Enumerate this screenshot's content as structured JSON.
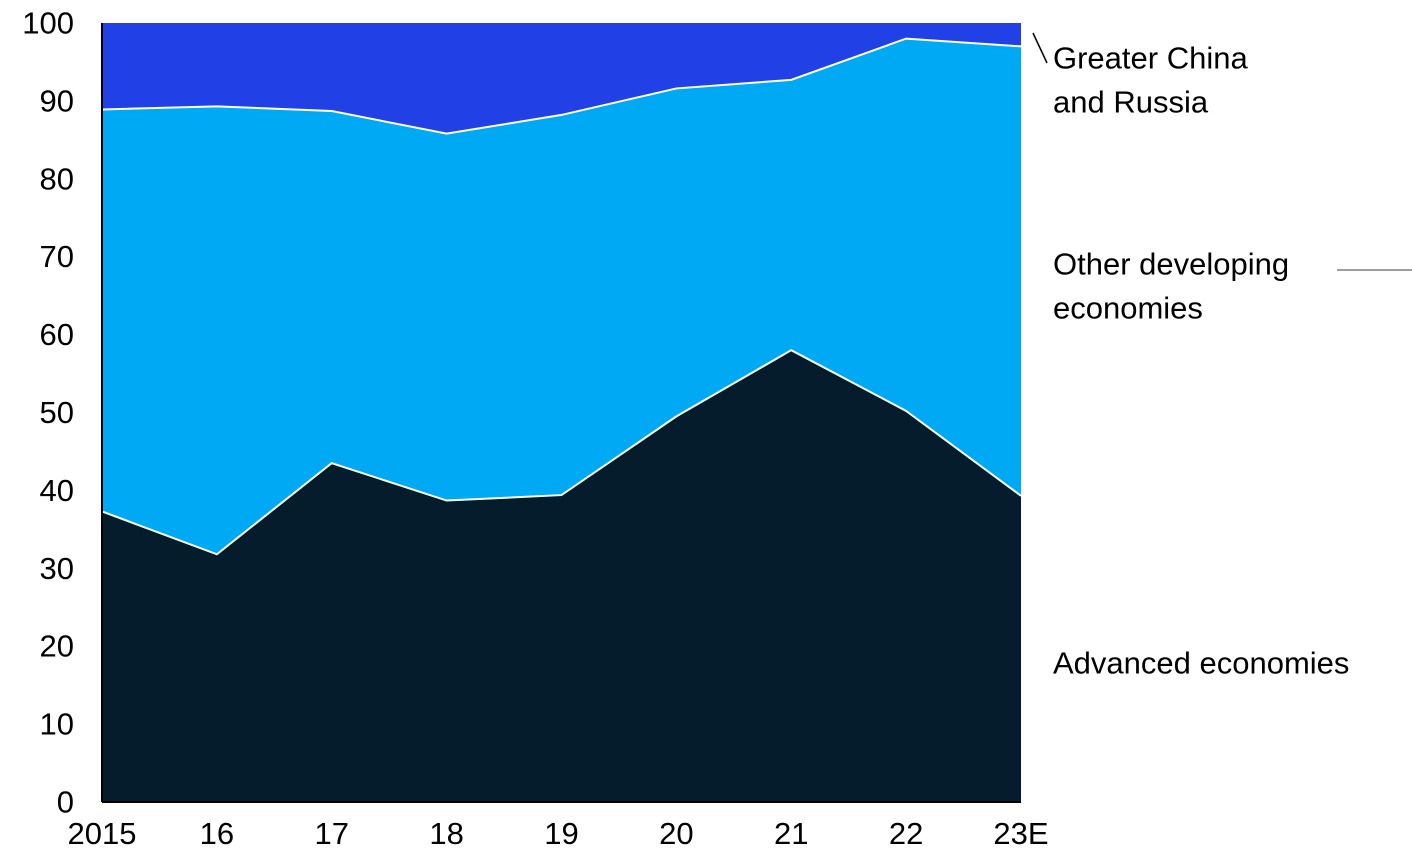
{
  "chart_data": {
    "type": "area",
    "stacked": true,
    "normalized_percent": true,
    "categories": [
      "2015",
      "16",
      "17",
      "18",
      "19",
      "20",
      "21",
      "22",
      "23E"
    ],
    "series": [
      {
        "name": "Advanced economies",
        "values": [
          37.3,
          31.8,
          43.5,
          38.7,
          39.4,
          49.5,
          58.0,
          50.2,
          39.3
        ],
        "color": "#051c2c"
      },
      {
        "name": "Other developing economies",
        "values": [
          51.6,
          57.5,
          45.2,
          47.1,
          48.8,
          42.1,
          34.7,
          47.8,
          57.7
        ],
        "color": "#00a9f4"
      },
      {
        "name": "Greater China and Russia",
        "values": [
          11.1,
          10.7,
          11.3,
          14.2,
          11.8,
          8.4,
          7.3,
          2.0,
          3.0
        ],
        "color": "#2140e6"
      }
    ],
    "series_labels": [
      {
        "line1": "Advanced economies",
        "line2": ""
      },
      {
        "line1": "Other developing",
        "line2": "economies"
      },
      {
        "line1": "Greater China",
        "line2": "and Russia"
      }
    ],
    "y_ticks": [
      "0",
      "10",
      "20",
      "30",
      "40",
      "50",
      "60",
      "70",
      "80",
      "90",
      "100"
    ],
    "ylim": [
      0,
      100
    ],
    "grid": false,
    "legend": "direct labels right"
  }
}
